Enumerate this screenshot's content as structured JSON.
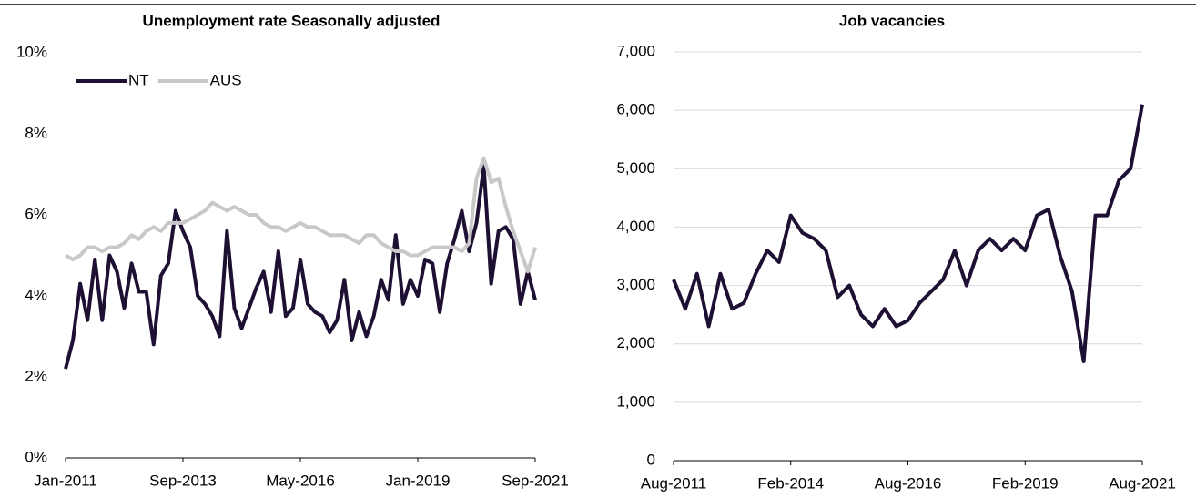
{
  "chart_data": [
    {
      "type": "line",
      "title": "Unemployment rate Seasonally adjusted",
      "categories": [
        "Jan-2011",
        null,
        null,
        null,
        null,
        null,
        null,
        null,
        null,
        null,
        null,
        null,
        null,
        null,
        null,
        null,
        "Sep-2013",
        null,
        null,
        null,
        null,
        null,
        null,
        null,
        null,
        null,
        null,
        null,
        null,
        null,
        null,
        null,
        "May-2016",
        null,
        null,
        null,
        null,
        null,
        null,
        null,
        null,
        null,
        null,
        null,
        null,
        null,
        null,
        null,
        "Jan-2019",
        null,
        null,
        null,
        null,
        null,
        null,
        null,
        null,
        null,
        null,
        null,
        null,
        null,
        null,
        null,
        "Sep-2021"
      ],
      "series": [
        {
          "name": "NT",
          "color": "#1e1033",
          "values": [
            2.2,
            2.9,
            4.3,
            3.4,
            4.9,
            3.4,
            5.0,
            4.6,
            3.7,
            4.8,
            4.1,
            4.1,
            2.8,
            4.5,
            4.8,
            6.1,
            5.6,
            5.2,
            4.0,
            3.8,
            3.5,
            3.0,
            5.6,
            3.7,
            3.2,
            3.7,
            4.2,
            4.6,
            3.6,
            5.1,
            3.5,
            3.7,
            4.9,
            3.8,
            3.6,
            3.5,
            3.1,
            3.4,
            4.4,
            2.9,
            3.6,
            3.0,
            3.5,
            4.4,
            3.9,
            5.5,
            3.8,
            4.4,
            4.0,
            4.9,
            4.8,
            3.6,
            4.8,
            5.4,
            6.1,
            5.1,
            5.8,
            7.2,
            4.3,
            5.6,
            5.7,
            5.4,
            3.8,
            4.6,
            3.9
          ]
        },
        {
          "name": "AUS",
          "color": "#c8c8c8",
          "values": [
            5.0,
            4.9,
            5.0,
            5.2,
            5.2,
            5.1,
            5.2,
            5.2,
            5.3,
            5.5,
            5.4,
            5.6,
            5.7,
            5.6,
            5.8,
            5.8,
            5.8,
            5.9,
            6.0,
            6.1,
            6.3,
            6.2,
            6.1,
            6.2,
            6.1,
            6.0,
            6.0,
            5.8,
            5.7,
            5.7,
            5.6,
            5.7,
            5.8,
            5.7,
            5.7,
            5.6,
            5.5,
            5.5,
            5.5,
            5.4,
            5.3,
            5.5,
            5.5,
            5.3,
            5.2,
            5.1,
            5.1,
            5.0,
            5.0,
            5.1,
            5.2,
            5.2,
            5.2,
            5.2,
            5.1,
            5.3,
            6.9,
            7.4,
            6.8,
            6.9,
            6.2,
            5.6,
            5.1,
            4.6,
            5.2
          ]
        }
      ],
      "ylim": [
        0,
        10
      ],
      "yticks": [
        {
          "value": 0,
          "label": "0%"
        },
        {
          "value": 2,
          "label": "2%"
        },
        {
          "value": 4,
          "label": "4%"
        },
        {
          "value": 6,
          "label": "6%"
        },
        {
          "value": 8,
          "label": "8%"
        },
        {
          "value": 10,
          "label": "10%"
        }
      ],
      "grid": false,
      "legend": "upper left"
    },
    {
      "type": "line",
      "title": "Job vacancies",
      "categories": [
        "Aug-2011",
        null,
        null,
        null,
        null,
        null,
        null,
        null,
        null,
        null,
        "Feb-2014",
        null,
        null,
        null,
        null,
        null,
        null,
        null,
        null,
        null,
        "Aug-2016",
        null,
        null,
        null,
        null,
        null,
        null,
        null,
        null,
        null,
        "Feb-2019",
        null,
        null,
        null,
        null,
        null,
        null,
        null,
        null,
        null,
        "Aug-2021"
      ],
      "series": [
        {
          "name": null,
          "color": "#1e1033",
          "values": [
            3100,
            2600,
            3200,
            2300,
            3200,
            2600,
            2700,
            3200,
            3600,
            3400,
            4200,
            3900,
            3800,
            3600,
            2800,
            3000,
            2500,
            2300,
            2600,
            2300,
            2400,
            2700,
            2900,
            3100,
            3600,
            3000,
            3600,
            3800,
            3600,
            3800,
            3600,
            4200,
            4300,
            3500,
            2900,
            1700,
            4200,
            4200,
            4800,
            5000,
            6100
          ]
        }
      ],
      "ylim": [
        0,
        7000
      ],
      "yticks": [
        0,
        {
          "value": 1000,
          "label": "1,000"
        },
        {
          "value": 2000,
          "label": "2,000"
        },
        {
          "value": 3000,
          "label": "3,000"
        },
        {
          "value": 4000,
          "label": "4,000"
        },
        {
          "value": 5000,
          "label": "5,000"
        },
        {
          "value": 6000,
          "label": "6,000"
        },
        {
          "value": 7000,
          "label": "7,000"
        }
      ],
      "grid": true
    }
  ]
}
